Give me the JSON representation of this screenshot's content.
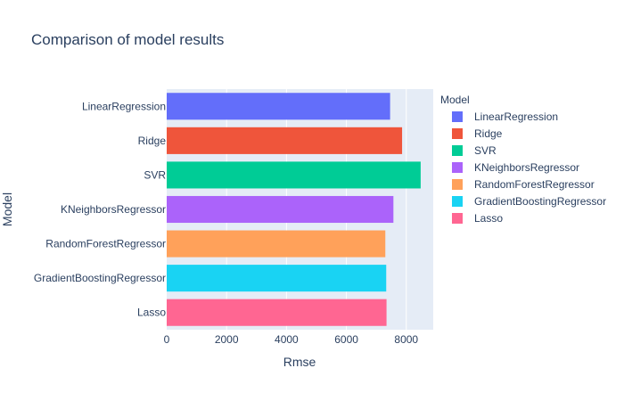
{
  "chart_data": {
    "type": "bar",
    "orientation": "horizontal",
    "title": "Comparison of model results",
    "xlabel": "Rmse",
    "ylabel": "Model",
    "xlim": [
      0,
      8900
    ],
    "xticks": [
      0,
      2000,
      4000,
      6000,
      8000
    ],
    "xtick_labels": [
      "0",
      "2000",
      "4000",
      "6000",
      "8000"
    ],
    "grid": true,
    "legend_title": "Model",
    "legend_position": "right",
    "series": [
      {
        "name": "LinearRegression",
        "value": 7460,
        "color": "#636efa"
      },
      {
        "name": "Ridge",
        "value": 7860,
        "color": "#EF553B"
      },
      {
        "name": "SVR",
        "value": 8480,
        "color": "#00cc96"
      },
      {
        "name": "KNeighborsRegressor",
        "value": 7570,
        "color": "#ab63fa"
      },
      {
        "name": "RandomForestRegressor",
        "value": 7300,
        "color": "#FFA15A"
      },
      {
        "name": "GradientBoostingRegressor",
        "value": 7330,
        "color": "#19d3f3"
      },
      {
        "name": "Lasso",
        "value": 7340,
        "color": "#FF6692"
      }
    ]
  }
}
